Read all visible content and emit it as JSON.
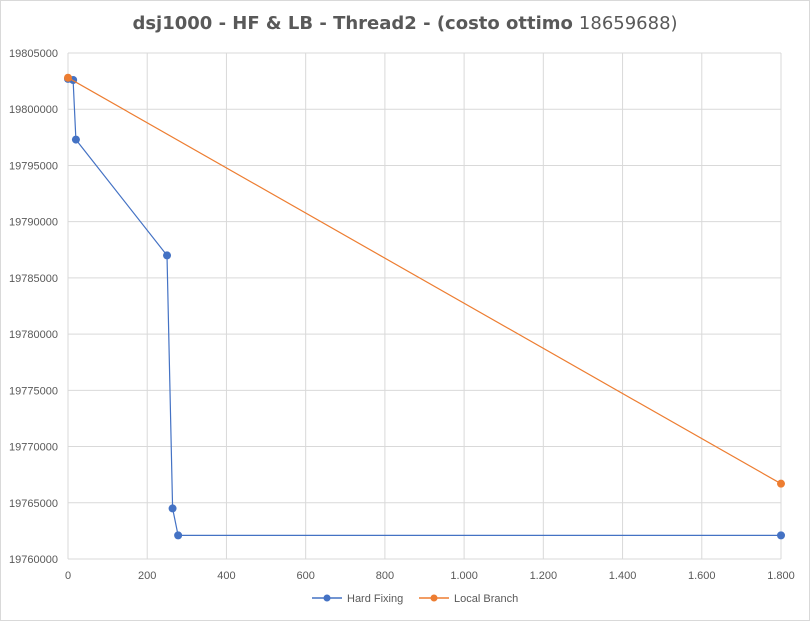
{
  "chart_data": {
    "type": "scatter",
    "title": "dsj1000 - HF & LB - Thread2 - (costo ottimo",
    "title_value": "18659688)",
    "xlabel": "",
    "ylabel": "",
    "xlim": [
      0,
      1800
    ],
    "ylim": [
      19760000,
      19805000
    ],
    "x_ticks": [
      0,
      200,
      400,
      600,
      800,
      1000,
      1200,
      1400,
      1600,
      1800
    ],
    "x_tick_labels": [
      "0",
      "200",
      "400",
      "600",
      "800",
      "1.000",
      "1.200",
      "1.400",
      "1.600",
      "1.800"
    ],
    "y_ticks": [
      19760000,
      19765000,
      19770000,
      19775000,
      19780000,
      19785000,
      19790000,
      19795000,
      19800000,
      19805000
    ],
    "y_tick_labels": [
      "19760000",
      "19765000",
      "19770000",
      "19775000",
      "19780000",
      "19785000",
      "19790000",
      "19795000",
      "19800000",
      "19805000"
    ],
    "grid": true,
    "legend_position": "bottom",
    "series": [
      {
        "name": "Hard Fixing",
        "color": "#4472c4",
        "x": [
          0,
          13,
          20,
          250,
          264,
          278,
          1800
        ],
        "y": [
          19802700,
          19802600,
          19797300,
          19787000,
          19764500,
          19762100,
          19762100
        ]
      },
      {
        "name": "Local Branch",
        "color": "#ed7d31",
        "x": [
          0,
          1800
        ],
        "y": [
          19802800,
          19766700
        ]
      }
    ]
  }
}
